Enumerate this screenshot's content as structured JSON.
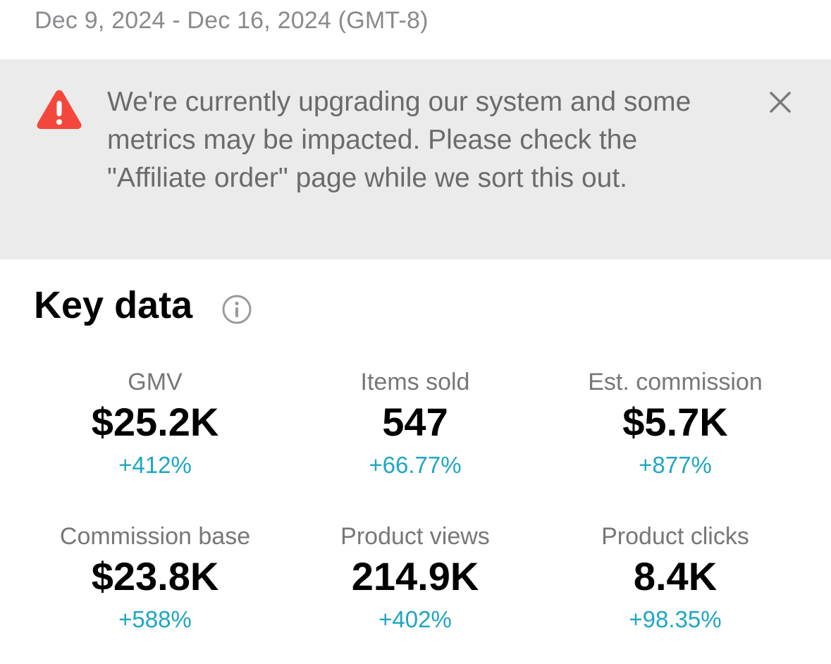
{
  "header": {
    "date_range": "Dec 9, 2024 - Dec 16, 2024 (GMT-8)"
  },
  "notice": {
    "icon": "warning-icon",
    "message": "We're currently upgrading our system and some metrics may be impacted. Please check the \"Affiliate order\" page while we sort this out.",
    "close_icon": "close-icon",
    "colors": {
      "background": "#ebebeb",
      "warning": "#f4473c"
    }
  },
  "key_data": {
    "title": "Key data",
    "info_icon": "info-icon",
    "metrics": [
      {
        "label": "GMV",
        "value": "$25.2K",
        "change": "+412%"
      },
      {
        "label": "Items sold",
        "value": "547",
        "change": "+66.77%"
      },
      {
        "label": "Est. commission",
        "value": "$5.7K",
        "change": "+877%"
      },
      {
        "label": "Commission base",
        "value": "$23.8K",
        "change": "+588%"
      },
      {
        "label": "Product views",
        "value": "214.9K",
        "change": "+402%"
      },
      {
        "label": "Product clicks",
        "value": "8.4K",
        "change": "+98.35%"
      }
    ],
    "change_color": "#1ea6c4"
  }
}
